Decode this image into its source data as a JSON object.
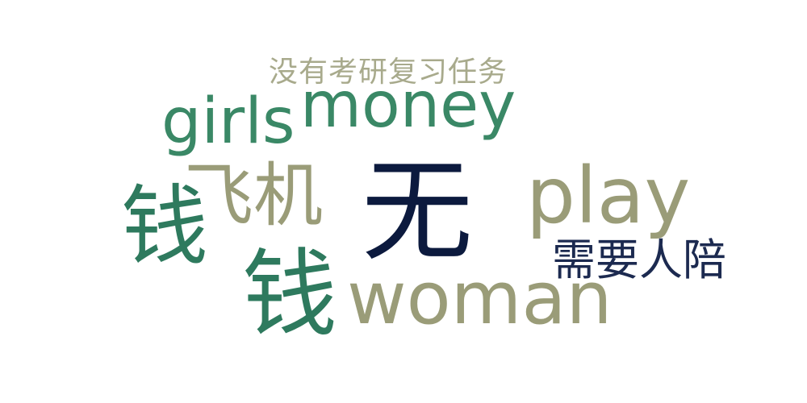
{
  "cloud": {
    "words": [
      {
        "text": "没有考研复习任务",
        "color": "#a8aa8c"
      },
      {
        "text": "girls",
        "color": "#3a8866"
      },
      {
        "text": "money",
        "color": "#3a8866"
      },
      {
        "text": "飞机",
        "color": "#9a9c78"
      },
      {
        "text": "钱",
        "color": "#2e7a5e"
      },
      {
        "text": "无",
        "color": "#0c1a3e"
      },
      {
        "text": "play",
        "color": "#9a9c78"
      },
      {
        "text": "需要人陪",
        "color": "#1c2a50"
      },
      {
        "text": "钱",
        "color": "#2e7a5e"
      },
      {
        "text": "woman",
        "color": "#9a9c78"
      }
    ]
  }
}
